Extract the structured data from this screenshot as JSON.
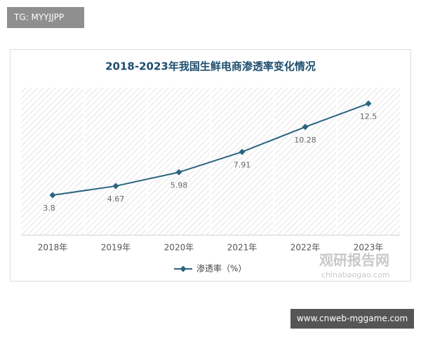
{
  "header": {
    "tag": "TG: MYYJJPP"
  },
  "chart_data": {
    "type": "line",
    "title": "2018-2023年我国生鲜电商渗透率变化情况",
    "categories": [
      "2018年",
      "2019年",
      "2020年",
      "2021年",
      "2022年",
      "2023年"
    ],
    "series": [
      {
        "name": "渗透率（%）",
        "color": "#2b6480",
        "values": [
          3.8,
          4.67,
          5.98,
          7.91,
          10.28,
          12.5
        ]
      }
    ],
    "ylim": [
      0,
      14
    ],
    "legend": "bottom"
  },
  "watermark": {
    "name": "观研报告网",
    "url": "chinabaogao.com"
  },
  "footer": {
    "site": "www.cnweb-mggame.com"
  }
}
